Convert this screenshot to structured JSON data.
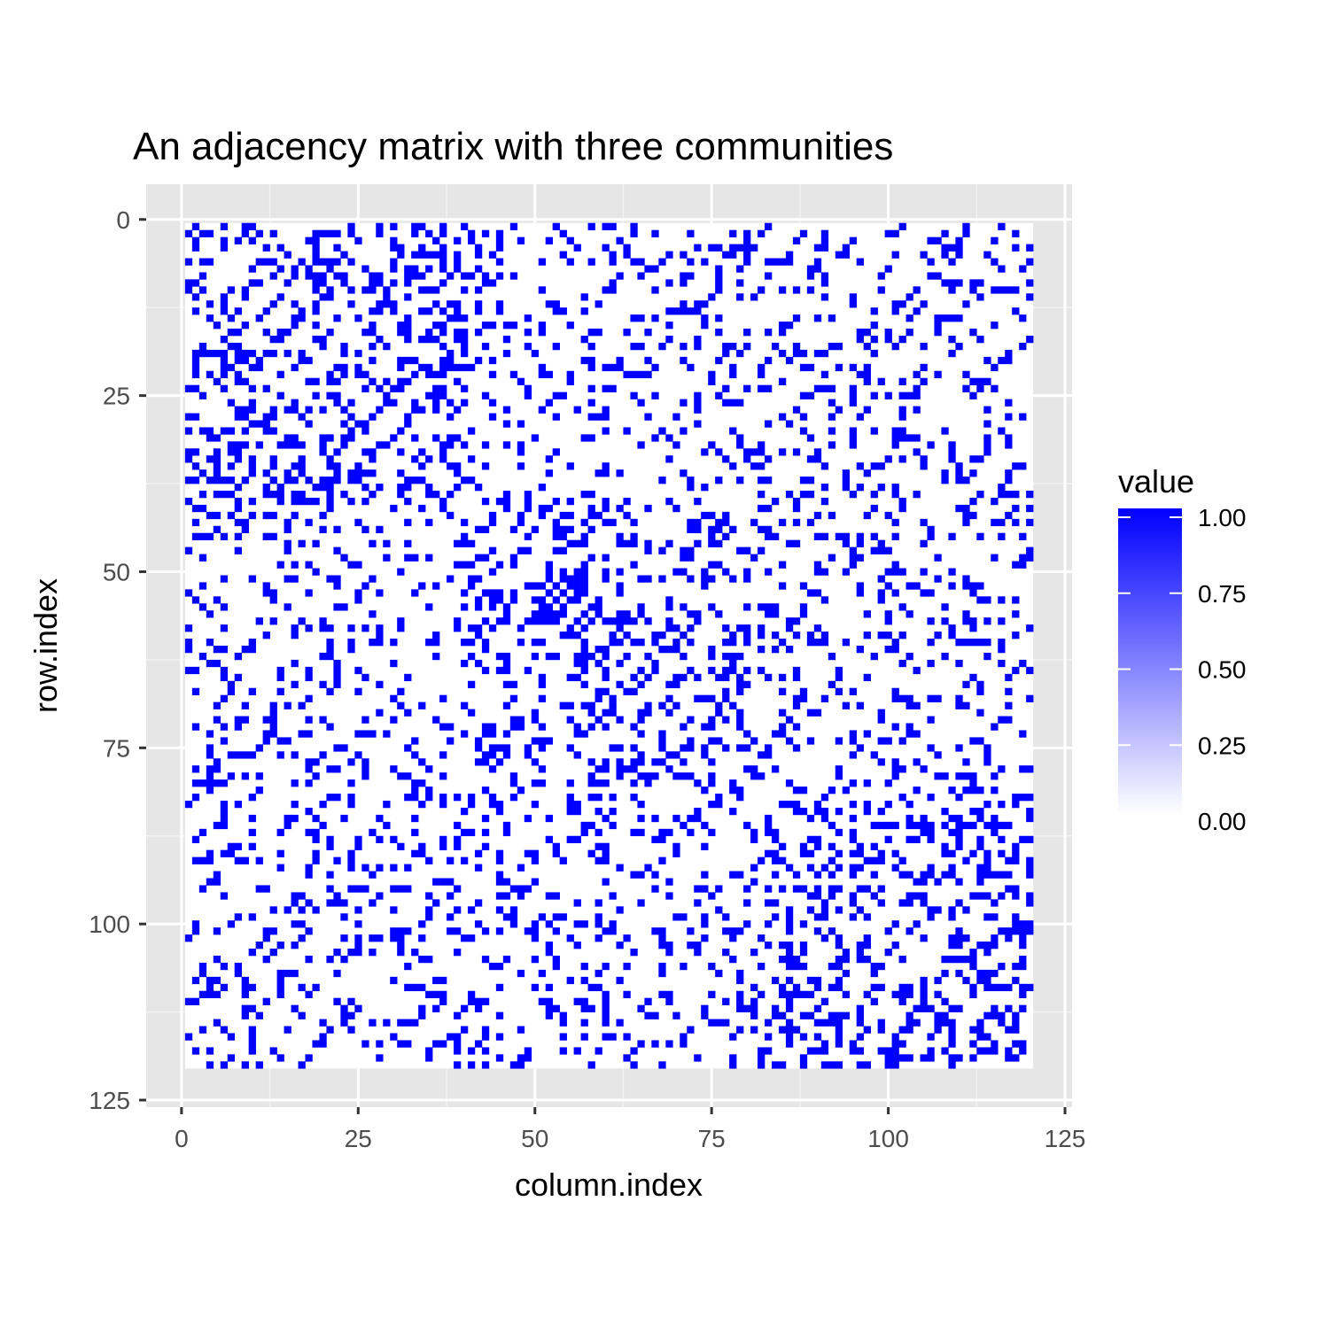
{
  "chart_data": {
    "type": "heatmap",
    "title": "An adjacency matrix with three communities",
    "xlabel": "column.index",
    "ylabel": "row.index",
    "n": 120,
    "xlim": [
      -5,
      126
    ],
    "ylim": [
      -5,
      126
    ],
    "y_reversed": true,
    "x_ticks": [
      "0",
      "25",
      "50",
      "75",
      "100",
      "125"
    ],
    "y_ticks": [
      "0",
      "25",
      "50",
      "75",
      "100",
      "125"
    ],
    "x_tick_values": [
      0,
      25,
      50,
      75,
      100,
      125
    ],
    "y_tick_values": [
      0,
      25,
      50,
      75,
      100,
      125
    ],
    "grid": true,
    "panel_background": "#e6e6e6",
    "fill_color_low": "#ffffff",
    "fill_color_high": "#0000ff",
    "community_boundaries": [
      40,
      80
    ],
    "edge_density_within": 0.3,
    "edge_density_between": 0.18,
    "legend": {
      "title": "value",
      "position": "right",
      "labels": [
        "1.00",
        "0.75",
        "0.50",
        "0.25",
        "0.00"
      ],
      "values": [
        1.0,
        0.75,
        0.5,
        0.25,
        0.0
      ]
    }
  }
}
